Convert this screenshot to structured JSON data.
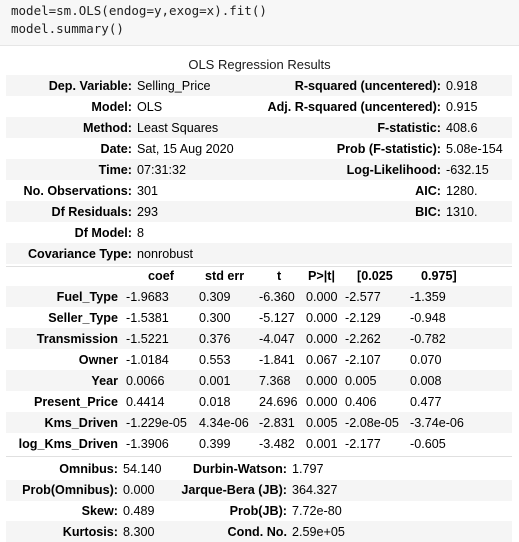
{
  "code": {
    "line1": "model=sm.OLS(endog=y,exog=x).fit()",
    "line2": "model.summary()"
  },
  "caption": "OLS Regression Results",
  "summary": {
    "dep_variable_label": "Dep. Variable:",
    "dep_variable": "Selling_Price",
    "model_label": "Model:",
    "model": "OLS",
    "method_label": "Method:",
    "method": "Least Squares",
    "date_label": "Date:",
    "date": "Sat, 15 Aug 2020",
    "time_label": "Time:",
    "time": "07:31:32",
    "nobs_label": "No. Observations:",
    "nobs": "301",
    "df_resid_label": "Df Residuals:",
    "df_resid": "293",
    "df_model_label": "Df Model:",
    "df_model": "8",
    "cov_type_label": "Covariance Type:",
    "cov_type": "nonrobust",
    "rsq_label": "R-squared (uncentered):",
    "rsq": "0.918",
    "adj_rsq_label": "Adj. R-squared (uncentered):",
    "adj_rsq": "0.915",
    "fstat_label": "F-statistic:",
    "fstat": "408.6",
    "prob_f_label": "Prob (F-statistic):",
    "prob_f": "5.08e-154",
    "loglik_label": "Log-Likelihood:",
    "loglik": "-632.15",
    "aic_label": "AIC:",
    "aic": "1280.",
    "bic_label": "BIC:",
    "bic": "1310."
  },
  "coef_table": {
    "headers": [
      "coef",
      "std err",
      "t",
      "P>|t|",
      "[0.025",
      "0.975]"
    ],
    "rows": [
      {
        "name": "Fuel_Type",
        "coef": "-1.9683",
        "se": "0.309",
        "t": "-6.360",
        "p": "0.000",
        "lo": "-2.577",
        "hi": "-1.359"
      },
      {
        "name": "Seller_Type",
        "coef": "-1.5381",
        "se": "0.300",
        "t": "-5.127",
        "p": "0.000",
        "lo": "-2.129",
        "hi": "-0.948"
      },
      {
        "name": "Transmission",
        "coef": "-1.5221",
        "se": "0.376",
        "t": "-4.047",
        "p": "0.000",
        "lo": "-2.262",
        "hi": "-0.782"
      },
      {
        "name": "Owner",
        "coef": "-1.0184",
        "se": "0.553",
        "t": "-1.841",
        "p": "0.067",
        "lo": "-2.107",
        "hi": "0.070"
      },
      {
        "name": "Year",
        "coef": "0.0066",
        "se": "0.001",
        "t": "7.368",
        "p": "0.000",
        "lo": "0.005",
        "hi": "0.008"
      },
      {
        "name": "Present_Price",
        "coef": "0.4414",
        "se": "0.018",
        "t": "24.696",
        "p": "0.000",
        "lo": "0.406",
        "hi": "0.477"
      },
      {
        "name": "Kms_Driven",
        "coef": "-1.229e-05",
        "se": "4.34e-06",
        "t": "-2.831",
        "p": "0.005",
        "lo": "-2.08e-05",
        "hi": "-3.74e-06"
      },
      {
        "name": "log_Kms_Driven",
        "coef": "-1.3906",
        "se": "0.399",
        "t": "-3.482",
        "p": "0.001",
        "lo": "-2.177",
        "hi": "-0.605"
      }
    ]
  },
  "diagnostics": {
    "omnibus_label": "Omnibus:",
    "omnibus": "54.140",
    "dw_label": "Durbin-Watson:",
    "dw": "1.797",
    "prob_omnibus_label": "Prob(Omnibus):",
    "prob_omnibus": "0.000",
    "jb_label": "Jarque-Bera (JB):",
    "jb": "364.327",
    "skew_label": "Skew:",
    "skew": "0.489",
    "prob_jb_label": "Prob(JB):",
    "prob_jb": "7.72e-80",
    "kurtosis_label": "Kurtosis:",
    "kurtosis": "8.300",
    "cond_label": "Cond. No.",
    "cond": "2.59e+05"
  }
}
